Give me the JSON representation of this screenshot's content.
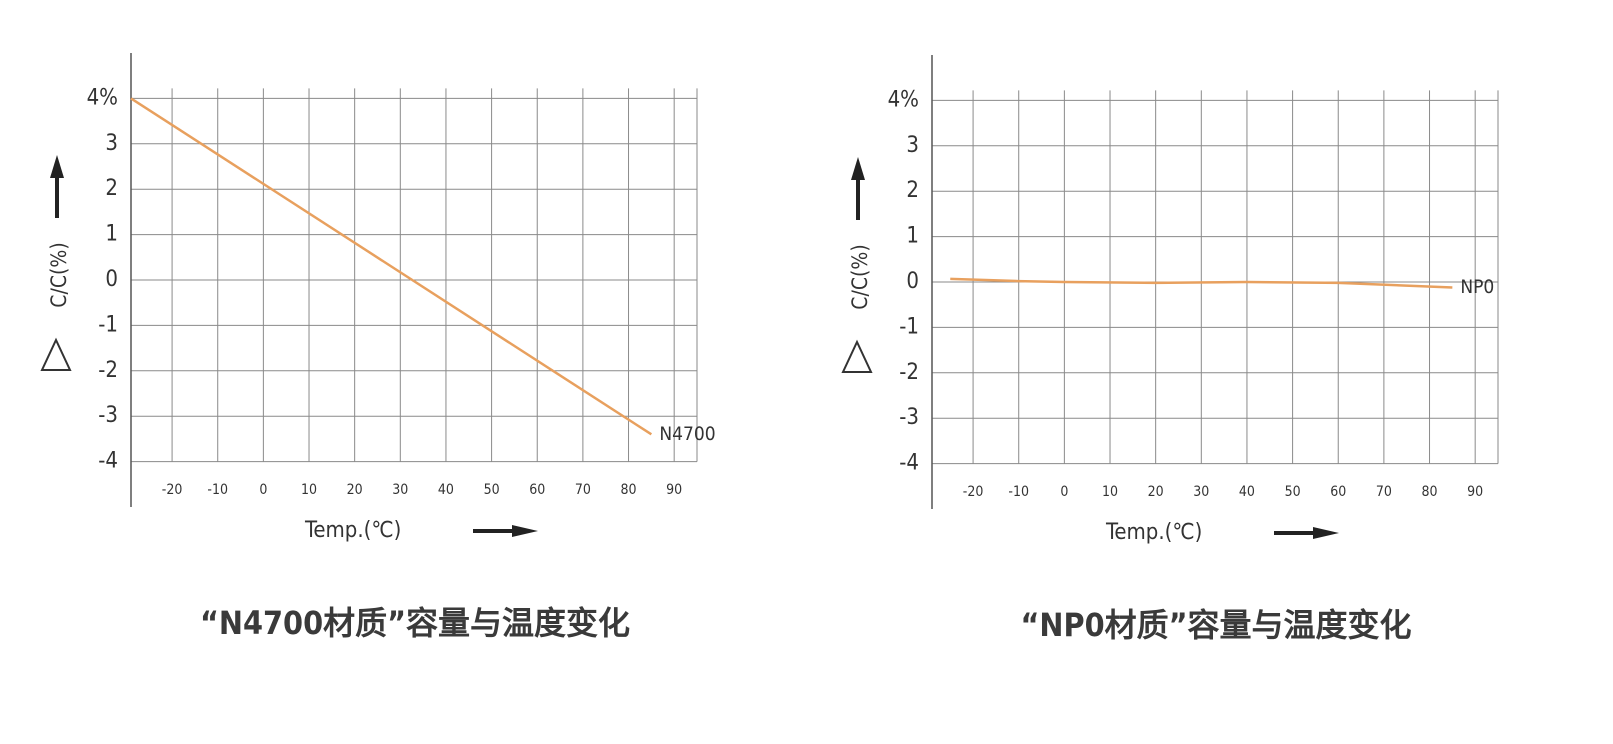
{
  "chart_data": [
    {
      "type": "line",
      "title": "“N4700材质”容量与温度变化",
      "xlabel": "Temp.(℃)",
      "ylabel": "C/C(%)",
      "xlim": [
        -29,
        95
      ],
      "ylim": [
        -5,
        5
      ],
      "xticks": [
        -20,
        -10,
        0,
        10,
        20,
        30,
        40,
        50,
        60,
        70,
        80,
        90
      ],
      "yticks": [
        -4,
        -3,
        -2,
        -1,
        0,
        1,
        2,
        3,
        {
          "value": 4,
          "label": "4%"
        }
      ],
      "grid": true,
      "series": [
        {
          "name": "N4700",
          "color": "#e8a05e",
          "x": [
            -29,
            85
          ],
          "values": [
            4,
            -3.4
          ]
        }
      ]
    },
    {
      "type": "line",
      "title": "“NP0材质”容量与温度变化",
      "xlabel": "Temp.(℃)",
      "ylabel": "C/C(%)",
      "xlim": [
        -29,
        95
      ],
      "ylim": [
        -5,
        5
      ],
      "xticks": [
        -20,
        -10,
        0,
        10,
        20,
        30,
        40,
        50,
        60,
        70,
        80,
        90
      ],
      "yticks": [
        -4,
        -3,
        -2,
        -1,
        0,
        1,
        2,
        3,
        {
          "value": 4,
          "label": "4%"
        }
      ],
      "grid": true,
      "series": [
        {
          "name": "NP0",
          "color": "#e8a05e",
          "x": [
            -25,
            -10,
            0,
            20,
            40,
            60,
            85
          ],
          "values": [
            0.07,
            0.02,
            0,
            -0.02,
            0,
            -0.02,
            -0.12
          ]
        }
      ]
    }
  ]
}
